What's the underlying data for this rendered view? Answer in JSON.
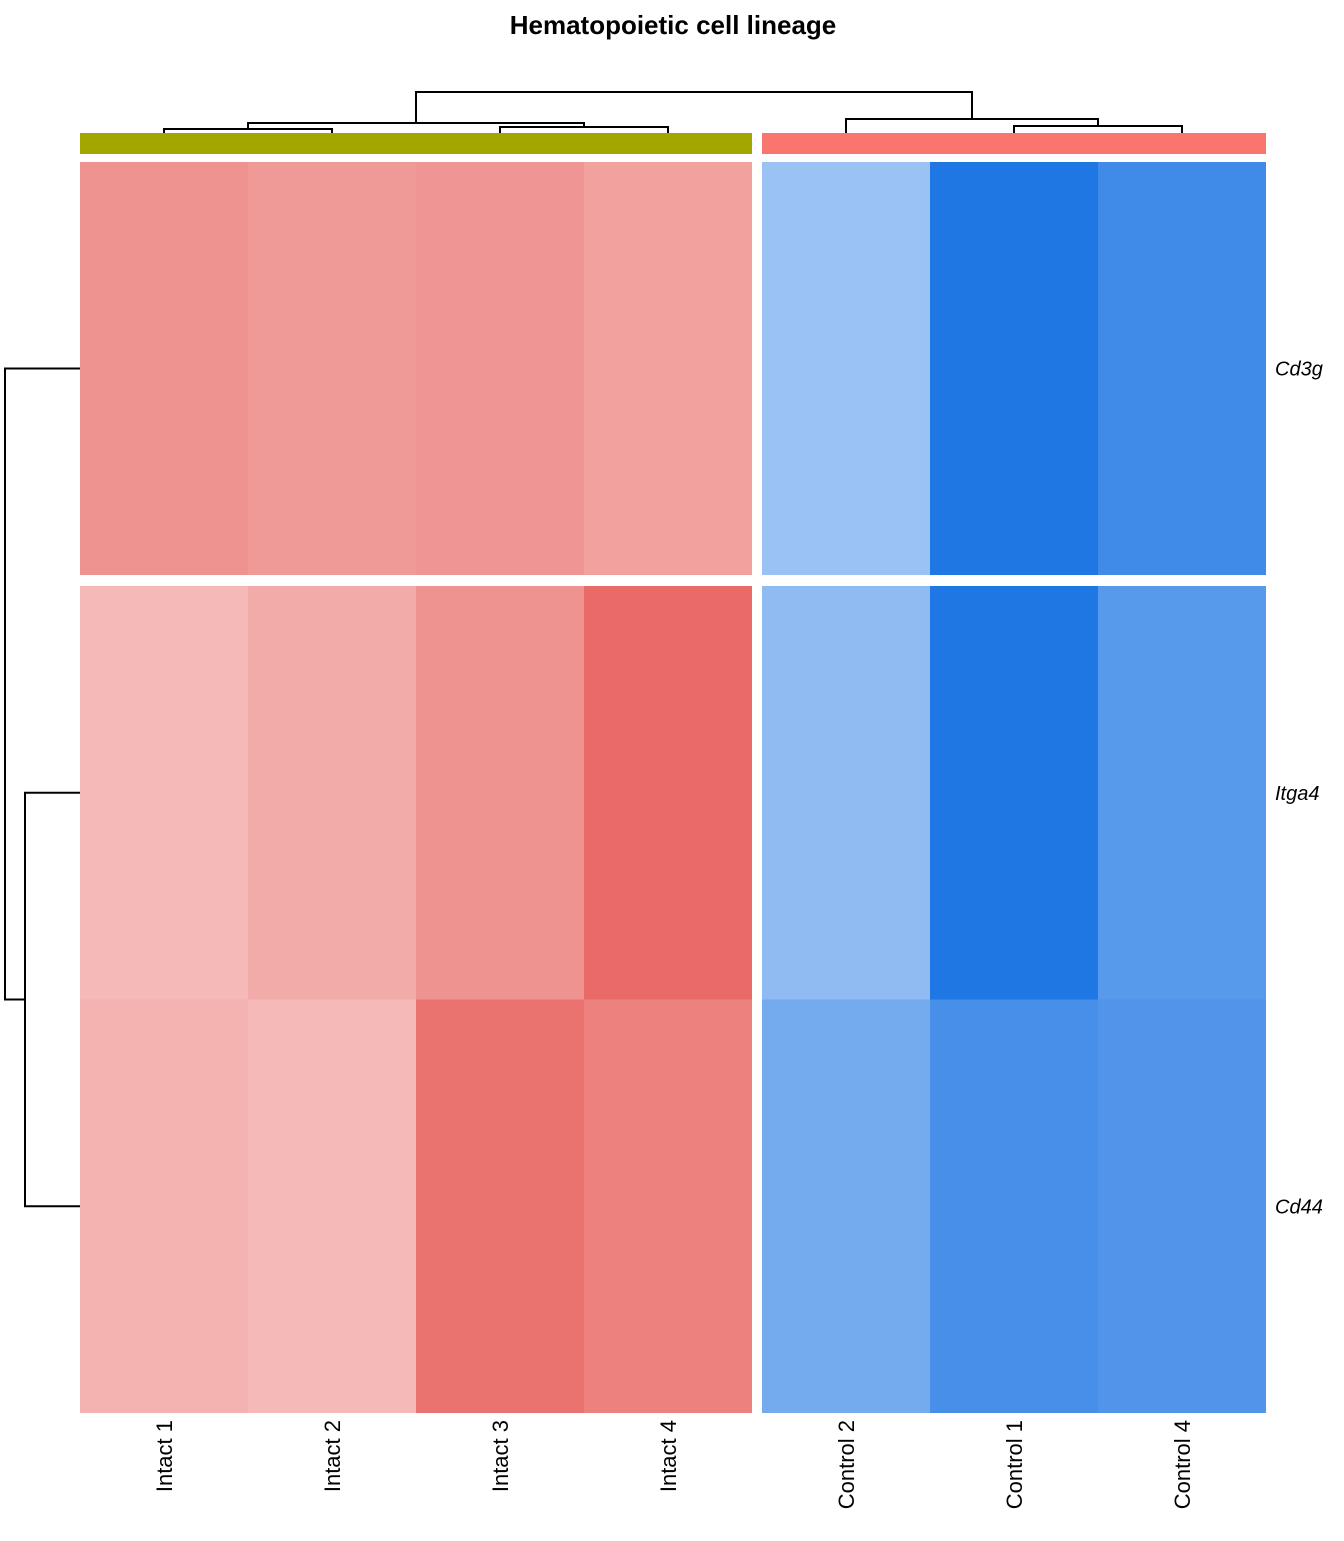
{
  "chart_data": {
    "type": "heatmap",
    "title": "Hematopoietic cell lineage",
    "rows": [
      "Cd3g",
      "Itga4",
      "Cd44"
    ],
    "row_groups": [
      [
        "Cd3g"
      ],
      [
        "Itga4",
        "Cd44"
      ]
    ],
    "column_groups": [
      {
        "color": "#a3a500",
        "columns": [
          "Intact 1",
          "Intact 2",
          "Intact 3",
          "Intact 4"
        ]
      },
      {
        "color": "#f8766d",
        "columns": [
          "Control 2",
          "Control 1",
          "Control 4"
        ]
      }
    ],
    "columns": [
      "Intact 1",
      "Intact 2",
      "Intact 3",
      "Intact 4",
      "Control 2",
      "Control 1",
      "Control 4"
    ],
    "values": [
      [
        0.62,
        0.58,
        0.6,
        0.54,
        -0.45,
        -1.0,
        -0.85
      ],
      [
        0.4,
        0.48,
        0.62,
        0.85,
        -0.5,
        -1.0,
        -0.75
      ],
      [
        0.44,
        0.4,
        0.8,
        0.72,
        -0.62,
        -0.82,
        -0.78
      ]
    ],
    "color_scale": {
      "low": "#1f77e4",
      "mid": "#ffffff",
      "high": "#e5504c",
      "min": -1,
      "max": 1
    },
    "legend": "none"
  }
}
